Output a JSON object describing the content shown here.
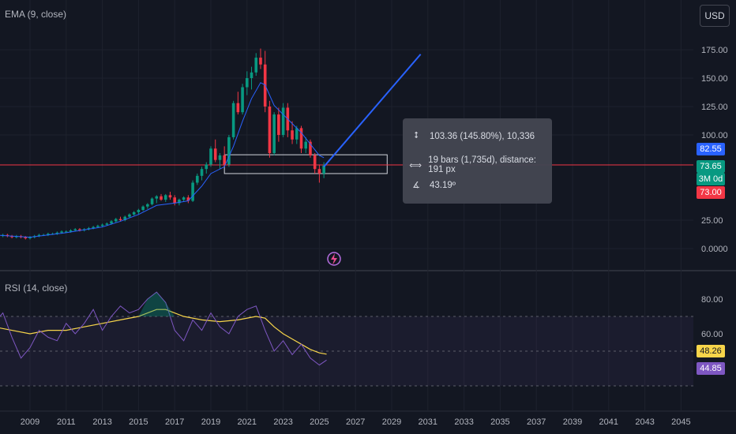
{
  "header": {
    "currency_label": "USD",
    "ema_legend": "EMA (9, close)",
    "rsi_legend": "RSI (14, close)"
  },
  "measure_tooltip": {
    "price_change": "103.36 (145.80%), 10,336",
    "bars_distance": "19 bars (1,735d), distance: 191 px",
    "angle": "43.19º"
  },
  "price_badges": [
    {
      "label": "82.55",
      "color": "#2962ff"
    },
    {
      "label": "73.65",
      "color": "#089981"
    },
    {
      "label": "3M 0d",
      "color": "#089981"
    },
    {
      "label": "73.00",
      "color": "#f23645"
    }
  ],
  "rsi_badges": [
    {
      "label": "48.26",
      "color": "#f7d54a"
    },
    {
      "label": "44.85",
      "color": "#7e57c2"
    }
  ],
  "icons": {
    "logo": "lightning-logo-icon",
    "measure_price": "vertical-range-icon",
    "measure_bars": "horizontal-range-icon",
    "measure_angle": "angle-icon"
  },
  "colors": {
    "background": "#131722",
    "up": "#089981",
    "down": "#f23645",
    "ema": "#2962ff",
    "rsi": "#7e57c2",
    "rsi_ma": "#f7d54a",
    "trendline": "#2962ff"
  },
  "chart_data": [
    {
      "type": "candlestick",
      "title": "",
      "x_ticks": [
        "2009",
        "2011",
        "2013",
        "2015",
        "2017",
        "2019",
        "2021",
        "2023",
        "2025",
        "2027",
        "2029",
        "2031",
        "2033",
        "2035",
        "2037",
        "2039",
        "2041",
        "2043",
        "2045"
      ],
      "y_ticks": [
        "175.00",
        "150.00",
        "125.00",
        "100.00",
        "25.00",
        "0.0000"
      ],
      "ylim": [
        0,
        175
      ],
      "grid": true,
      "candles": [
        {
          "t": 2007.0,
          "o": 12,
          "h": 13,
          "l": 10,
          "c": 11
        },
        {
          "t": 2007.25,
          "o": 11,
          "h": 12,
          "l": 10,
          "c": 11
        },
        {
          "t": 2007.5,
          "o": 11,
          "h": 13,
          "l": 10,
          "c": 12
        },
        {
          "t": 2007.75,
          "o": 12,
          "h": 13,
          "l": 10,
          "c": 11
        },
        {
          "t": 2008.0,
          "o": 11,
          "h": 12,
          "l": 9,
          "c": 10
        },
        {
          "t": 2008.25,
          "o": 10,
          "h": 12,
          "l": 9,
          "c": 11
        },
        {
          "t": 2008.5,
          "o": 11,
          "h": 12,
          "l": 9,
          "c": 10
        },
        {
          "t": 2008.75,
          "o": 10,
          "h": 11,
          "l": 8,
          "c": 9
        },
        {
          "t": 2009.0,
          "o": 9,
          "h": 11,
          "l": 8,
          "c": 10
        },
        {
          "t": 2009.25,
          "o": 10,
          "h": 12,
          "l": 9,
          "c": 11
        },
        {
          "t": 2009.5,
          "o": 11,
          "h": 13,
          "l": 10,
          "c": 12
        },
        {
          "t": 2009.75,
          "o": 12,
          "h": 13,
          "l": 11,
          "c": 12
        },
        {
          "t": 2010.0,
          "o": 12,
          "h": 14,
          "l": 11,
          "c": 13
        },
        {
          "t": 2010.25,
          "o": 13,
          "h": 14,
          "l": 12,
          "c": 13
        },
        {
          "t": 2010.5,
          "o": 13,
          "h": 15,
          "l": 12,
          "c": 14
        },
        {
          "t": 2010.75,
          "o": 14,
          "h": 16,
          "l": 13,
          "c": 15
        },
        {
          "t": 2011.0,
          "o": 15,
          "h": 16,
          "l": 14,
          "c": 15
        },
        {
          "t": 2011.25,
          "o": 15,
          "h": 17,
          "l": 14,
          "c": 16
        },
        {
          "t": 2011.5,
          "o": 16,
          "h": 18,
          "l": 15,
          "c": 17
        },
        {
          "t": 2011.75,
          "o": 17,
          "h": 18,
          "l": 15,
          "c": 16
        },
        {
          "t": 2012.0,
          "o": 16,
          "h": 18,
          "l": 15,
          "c": 17
        },
        {
          "t": 2012.25,
          "o": 17,
          "h": 19,
          "l": 16,
          "c": 18
        },
        {
          "t": 2012.5,
          "o": 18,
          "h": 20,
          "l": 17,
          "c": 19
        },
        {
          "t": 2012.75,
          "o": 19,
          "h": 21,
          "l": 18,
          "c": 20
        },
        {
          "t": 2013.0,
          "o": 20,
          "h": 22,
          "l": 19,
          "c": 21
        },
        {
          "t": 2013.25,
          "o": 21,
          "h": 23,
          "l": 20,
          "c": 22
        },
        {
          "t": 2013.5,
          "o": 22,
          "h": 25,
          "l": 21,
          "c": 24
        },
        {
          "t": 2013.75,
          "o": 24,
          "h": 27,
          "l": 23,
          "c": 26
        },
        {
          "t": 2014.0,
          "o": 26,
          "h": 28,
          "l": 24,
          "c": 25
        },
        {
          "t": 2014.25,
          "o": 25,
          "h": 29,
          "l": 24,
          "c": 28
        },
        {
          "t": 2014.5,
          "o": 28,
          "h": 31,
          "l": 27,
          "c": 30
        },
        {
          "t": 2014.75,
          "o": 30,
          "h": 33,
          "l": 29,
          "c": 32
        },
        {
          "t": 2015.0,
          "o": 32,
          "h": 35,
          "l": 30,
          "c": 34
        },
        {
          "t": 2015.25,
          "o": 34,
          "h": 38,
          "l": 33,
          "c": 37
        },
        {
          "t": 2015.5,
          "o": 37,
          "h": 40,
          "l": 35,
          "c": 39
        },
        {
          "t": 2015.75,
          "o": 39,
          "h": 45,
          "l": 38,
          "c": 44
        },
        {
          "t": 2016.0,
          "o": 44,
          "h": 47,
          "l": 40,
          "c": 46
        },
        {
          "t": 2016.25,
          "o": 46,
          "h": 48,
          "l": 42,
          "c": 43
        },
        {
          "t": 2016.5,
          "o": 43,
          "h": 48,
          "l": 41,
          "c": 47
        },
        {
          "t": 2016.75,
          "o": 47,
          "h": 50,
          "l": 43,
          "c": 45
        },
        {
          "t": 2017.0,
          "o": 45,
          "h": 47,
          "l": 38,
          "c": 40
        },
        {
          "t": 2017.25,
          "o": 40,
          "h": 44,
          "l": 38,
          "c": 43
        },
        {
          "t": 2017.5,
          "o": 43,
          "h": 46,
          "l": 41,
          "c": 45
        },
        {
          "t": 2017.75,
          "o": 45,
          "h": 47,
          "l": 40,
          "c": 42
        },
        {
          "t": 2018.0,
          "o": 42,
          "h": 60,
          "l": 41,
          "c": 58
        },
        {
          "t": 2018.25,
          "o": 58,
          "h": 66,
          "l": 56,
          "c": 64
        },
        {
          "t": 2018.5,
          "o": 64,
          "h": 72,
          "l": 60,
          "c": 70
        },
        {
          "t": 2018.75,
          "o": 70,
          "h": 76,
          "l": 66,
          "c": 74
        },
        {
          "t": 2019.0,
          "o": 74,
          "h": 90,
          "l": 72,
          "c": 88
        },
        {
          "t": 2019.25,
          "o": 88,
          "h": 96,
          "l": 76,
          "c": 78
        },
        {
          "t": 2019.5,
          "o": 78,
          "h": 84,
          "l": 70,
          "c": 82
        },
        {
          "t": 2019.75,
          "o": 82,
          "h": 90,
          "l": 72,
          "c": 74
        },
        {
          "t": 2020.0,
          "o": 74,
          "h": 100,
          "l": 72,
          "c": 98
        },
        {
          "t": 2020.25,
          "o": 98,
          "h": 130,
          "l": 96,
          "c": 128
        },
        {
          "t": 2020.5,
          "o": 128,
          "h": 138,
          "l": 118,
          "c": 120
        },
        {
          "t": 2020.75,
          "o": 120,
          "h": 145,
          "l": 118,
          "c": 142
        },
        {
          "t": 2021.0,
          "o": 142,
          "h": 156,
          "l": 135,
          "c": 150
        },
        {
          "t": 2021.25,
          "o": 150,
          "h": 160,
          "l": 140,
          "c": 155
        },
        {
          "t": 2021.5,
          "o": 155,
          "h": 172,
          "l": 152,
          "c": 168
        },
        {
          "t": 2021.75,
          "o": 168,
          "h": 176,
          "l": 158,
          "c": 162
        },
        {
          "t": 2022.0,
          "o": 162,
          "h": 174,
          "l": 120,
          "c": 125
        },
        {
          "t": 2022.25,
          "o": 125,
          "h": 130,
          "l": 80,
          "c": 84
        },
        {
          "t": 2022.5,
          "o": 84,
          "h": 120,
          "l": 82,
          "c": 118
        },
        {
          "t": 2022.75,
          "o": 118,
          "h": 124,
          "l": 94,
          "c": 100
        },
        {
          "t": 2023.0,
          "o": 100,
          "h": 128,
          "l": 98,
          "c": 124
        },
        {
          "t": 2023.25,
          "o": 124,
          "h": 128,
          "l": 98,
          "c": 104
        },
        {
          "t": 2023.5,
          "o": 104,
          "h": 112,
          "l": 92,
          "c": 96
        },
        {
          "t": 2023.75,
          "o": 96,
          "h": 108,
          "l": 92,
          "c": 106
        },
        {
          "t": 2024.0,
          "o": 106,
          "h": 108,
          "l": 84,
          "c": 88
        },
        {
          "t": 2024.25,
          "o": 88,
          "h": 98,
          "l": 84,
          "c": 94
        },
        {
          "t": 2024.5,
          "o": 94,
          "h": 96,
          "l": 80,
          "c": 82
        },
        {
          "t": 2024.75,
          "o": 82,
          "h": 84,
          "l": 66,
          "c": 70
        },
        {
          "t": 2025.0,
          "o": 70,
          "h": 74,
          "l": 58,
          "c": 66
        },
        {
          "t": 2025.25,
          "o": 66,
          "h": 76,
          "l": 62,
          "c": 73
        }
      ],
      "ema": [
        {
          "t": 2007.0,
          "v": 12
        },
        {
          "t": 2009.0,
          "v": 10
        },
        {
          "t": 2011.0,
          "v": 14
        },
        {
          "t": 2013.0,
          "v": 19
        },
        {
          "t": 2014.0,
          "v": 24
        },
        {
          "t": 2015.0,
          "v": 30
        },
        {
          "t": 2016.0,
          "v": 38
        },
        {
          "t": 2017.0,
          "v": 40
        },
        {
          "t": 2017.75,
          "v": 42
        },
        {
          "t": 2018.5,
          "v": 55
        },
        {
          "t": 2019.0,
          "v": 66
        },
        {
          "t": 2019.75,
          "v": 72
        },
        {
          "t": 2020.25,
          "v": 90
        },
        {
          "t": 2020.75,
          "v": 112
        },
        {
          "t": 2021.25,
          "v": 132
        },
        {
          "t": 2021.75,
          "v": 146
        },
        {
          "t": 2022.0,
          "v": 144
        },
        {
          "t": 2022.5,
          "v": 126
        },
        {
          "t": 2023.0,
          "v": 118
        },
        {
          "t": 2023.5,
          "v": 110
        },
        {
          "t": 2024.0,
          "v": 102
        },
        {
          "t": 2024.5,
          "v": 92
        },
        {
          "t": 2025.0,
          "v": 82
        },
        {
          "t": 2025.25,
          "v": 80
        }
      ],
      "last_price": 73.65,
      "drawings": {
        "trendline": {
          "from": {
            "t": 2025.25,
            "v": 72
          },
          "to": {
            "t": 2030.6,
            "v": 171
          }
        },
        "horizontal_line": 73.65,
        "measure_box": {
          "t1": 2019.75,
          "t2": 2028.75,
          "v1": 82.55,
          "v2": 66
        }
      }
    },
    {
      "type": "line",
      "title": "",
      "y_ticks": [
        "80.00",
        "60.00",
        "40.00"
      ],
      "ylim": [
        30,
        90
      ],
      "bands": [
        70,
        50,
        30
      ],
      "series": [
        {
          "name": "",
          "values": [
            {
              "t": 2007.0,
              "v": 66
            },
            {
              "t": 2007.5,
              "v": 72
            },
            {
              "t": 2008.0,
              "v": 58
            },
            {
              "t": 2008.5,
              "v": 46
            },
            {
              "t": 2009.0,
              "v": 52
            },
            {
              "t": 2009.5,
              "v": 62
            },
            {
              "t": 2010.0,
              "v": 58
            },
            {
              "t": 2010.5,
              "v": 56
            },
            {
              "t": 2011.0,
              "v": 66
            },
            {
              "t": 2011.5,
              "v": 60
            },
            {
              "t": 2012.0,
              "v": 66
            },
            {
              "t": 2012.5,
              "v": 74
            },
            {
              "t": 2013.0,
              "v": 62
            },
            {
              "t": 2013.5,
              "v": 70
            },
            {
              "t": 2014.0,
              "v": 76
            },
            {
              "t": 2014.5,
              "v": 72
            },
            {
              "t": 2015.0,
              "v": 74
            },
            {
              "t": 2015.5,
              "v": 80
            },
            {
              "t": 2016.0,
              "v": 84
            },
            {
              "t": 2016.5,
              "v": 78
            },
            {
              "t": 2017.0,
              "v": 62
            },
            {
              "t": 2017.5,
              "v": 56
            },
            {
              "t": 2018.0,
              "v": 68
            },
            {
              "t": 2018.5,
              "v": 62
            },
            {
              "t": 2019.0,
              "v": 72
            },
            {
              "t": 2019.5,
              "v": 64
            },
            {
              "t": 2020.0,
              "v": 60
            },
            {
              "t": 2020.5,
              "v": 70
            },
            {
              "t": 2021.0,
              "v": 74
            },
            {
              "t": 2021.5,
              "v": 76
            },
            {
              "t": 2022.0,
              "v": 62
            },
            {
              "t": 2022.5,
              "v": 50
            },
            {
              "t": 2023.0,
              "v": 56
            },
            {
              "t": 2023.5,
              "v": 48
            },
            {
              "t": 2024.0,
              "v": 54
            },
            {
              "t": 2024.5,
              "v": 46
            },
            {
              "t": 2025.0,
              "v": 42
            },
            {
              "t": 2025.4,
              "v": 44.85
            }
          ]
        },
        {
          "name": "",
          "values": [
            {
              "t": 2007.0,
              "v": 64
            },
            {
              "t": 2009.0,
              "v": 60
            },
            {
              "t": 2010.0,
              "v": 62
            },
            {
              "t": 2011.0,
              "v": 62
            },
            {
              "t": 2012.0,
              "v": 64
            },
            {
              "t": 2013.0,
              "v": 66
            },
            {
              "t": 2014.0,
              "v": 68
            },
            {
              "t": 2015.0,
              "v": 70
            },
            {
              "t": 2016.0,
              "v": 74
            },
            {
              "t": 2016.5,
              "v": 74
            },
            {
              "t": 2017.5,
              "v": 70
            },
            {
              "t": 2018.5,
              "v": 68
            },
            {
              "t": 2019.5,
              "v": 67
            },
            {
              "t": 2020.5,
              "v": 68
            },
            {
              "t": 2021.5,
              "v": 70
            },
            {
              "t": 2022.0,
              "v": 69
            },
            {
              "t": 2022.5,
              "v": 64
            },
            {
              "t": 2023.0,
              "v": 60
            },
            {
              "t": 2023.5,
              "v": 57
            },
            {
              "t": 2024.0,
              "v": 54
            },
            {
              "t": 2024.5,
              "v": 51
            },
            {
              "t": 2025.0,
              "v": 49
            },
            {
              "t": 2025.4,
              "v": 48.26
            }
          ]
        }
      ]
    }
  ]
}
